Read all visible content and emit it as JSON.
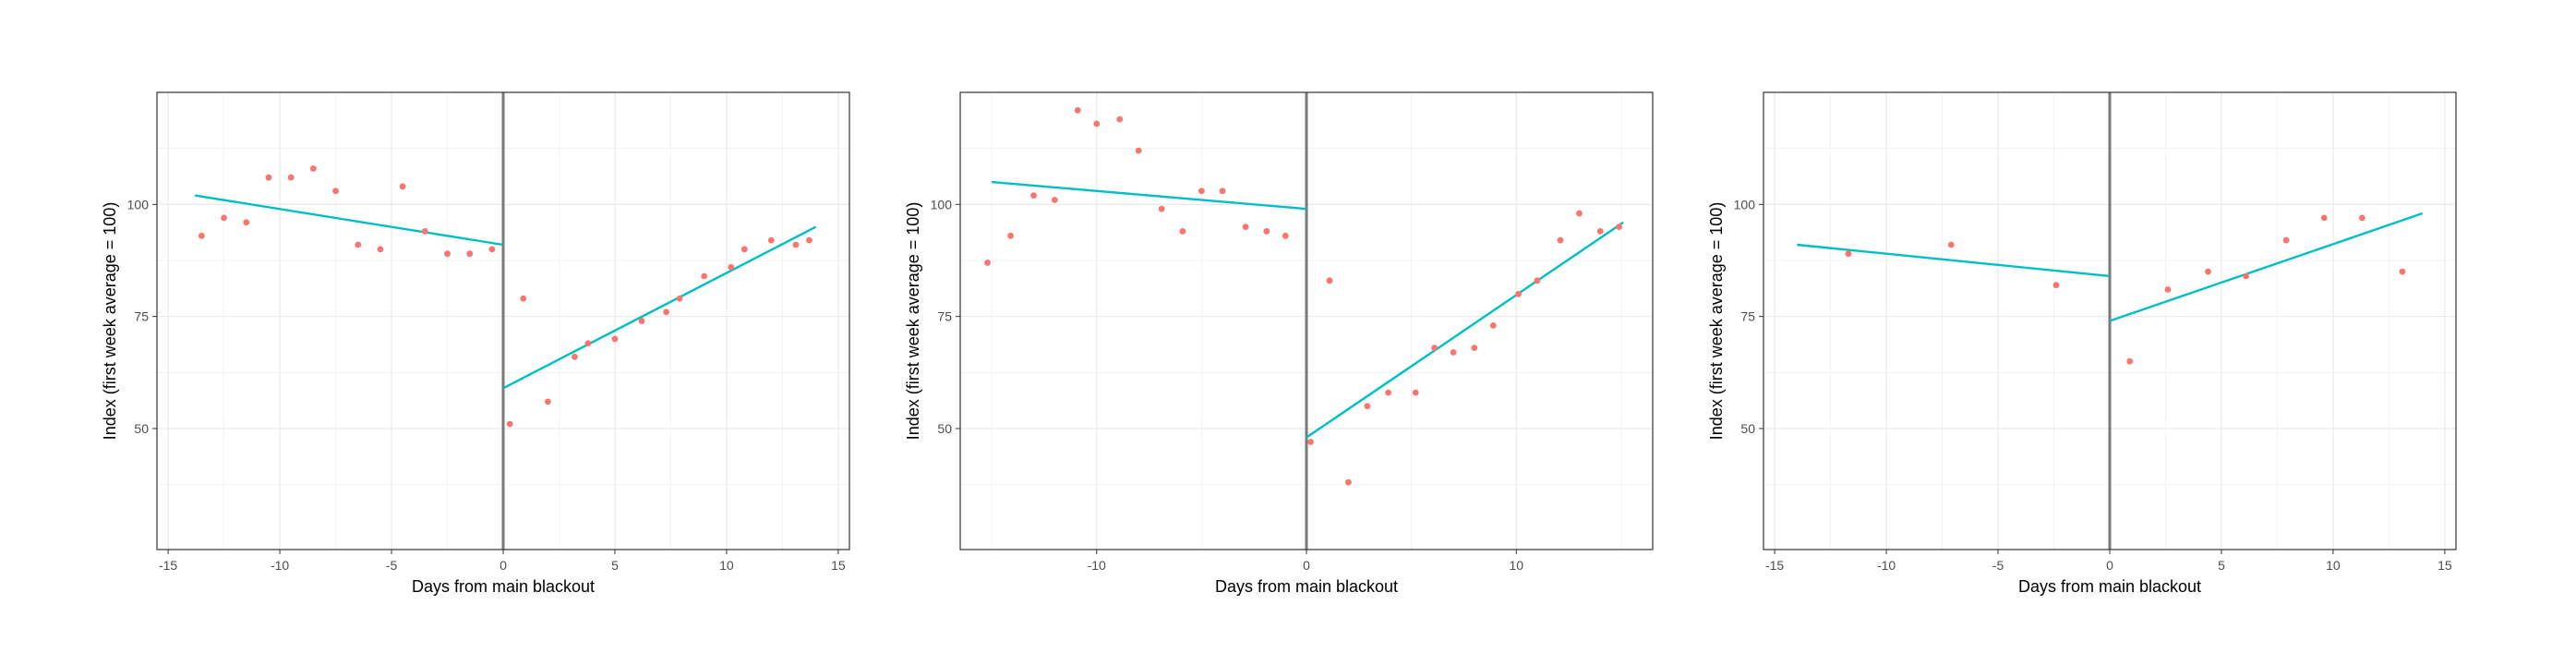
{
  "colors": {
    "point": "#f8766d",
    "fit_line": "#00bfc4",
    "cutoff_line": "#7a7a7a",
    "grid": "#ebebeb",
    "panel_border": "#333333",
    "background": "#ffffff"
  },
  "chart_data": [
    {
      "type": "scatter",
      "xlabel": "Days from main blackout",
      "ylabel": "Index (first week average = 100)",
      "xlim": [
        -15.5,
        15.5
      ],
      "ylim": [
        23,
        125
      ],
      "xticks": [
        -15,
        -10,
        -5,
        0,
        5,
        10,
        15
      ],
      "yticks": [
        50,
        75,
        100
      ],
      "grid": true,
      "cutoff_x": 0,
      "points": [
        {
          "x": -13.5,
          "y": 93
        },
        {
          "x": -12.5,
          "y": 97
        },
        {
          "x": -11.5,
          "y": 96
        },
        {
          "x": -10.5,
          "y": 106
        },
        {
          "x": -9.5,
          "y": 106
        },
        {
          "x": -8.5,
          "y": 108
        },
        {
          "x": -7.5,
          "y": 103
        },
        {
          "x": -6.5,
          "y": 91
        },
        {
          "x": -5.5,
          "y": 90
        },
        {
          "x": -4.5,
          "y": 104
        },
        {
          "x": -3.5,
          "y": 94
        },
        {
          "x": -2.5,
          "y": 89
        },
        {
          "x": -1.5,
          "y": 89
        },
        {
          "x": -0.5,
          "y": 90
        },
        {
          "x": 0.3,
          "y": 51
        },
        {
          "x": 0.9,
          "y": 79
        },
        {
          "x": 2.0,
          "y": 56
        },
        {
          "x": 3.2,
          "y": 66
        },
        {
          "x": 3.8,
          "y": 69
        },
        {
          "x": 5.0,
          "y": 70
        },
        {
          "x": 6.2,
          "y": 74
        },
        {
          "x": 7.3,
          "y": 76
        },
        {
          "x": 7.9,
          "y": 79
        },
        {
          "x": 9.0,
          "y": 84
        },
        {
          "x": 10.2,
          "y": 86
        },
        {
          "x": 10.8,
          "y": 90
        },
        {
          "x": 12.0,
          "y": 92
        },
        {
          "x": 13.1,
          "y": 91
        },
        {
          "x": 13.7,
          "y": 92
        }
      ],
      "fits": [
        {
          "x": [
            -13.8,
            0
          ],
          "y": [
            102,
            91
          ]
        },
        {
          "x": [
            0,
            14
          ],
          "y": [
            59,
            95
          ]
        }
      ]
    },
    {
      "type": "scatter",
      "xlabel": "Days from main blackout",
      "ylabel": "Index (first week average = 100)",
      "xlim": [
        -16.5,
        16.5
      ],
      "ylim": [
        23,
        125
      ],
      "xticks": [
        -10,
        0,
        10
      ],
      "yticks": [
        50,
        75,
        100
      ],
      "grid": true,
      "cutoff_x": 0,
      "points": [
        {
          "x": -15.2,
          "y": 87
        },
        {
          "x": -14.1,
          "y": 93
        },
        {
          "x": -13.0,
          "y": 102
        },
        {
          "x": -12.0,
          "y": 101
        },
        {
          "x": -10.9,
          "y": 121
        },
        {
          "x": -10.0,
          "y": 118
        },
        {
          "x": -8.9,
          "y": 119
        },
        {
          "x": -8.0,
          "y": 112
        },
        {
          "x": -6.9,
          "y": 99
        },
        {
          "x": -5.9,
          "y": 94
        },
        {
          "x": -5.0,
          "y": 103
        },
        {
          "x": -4.0,
          "y": 103
        },
        {
          "x": -2.9,
          "y": 95
        },
        {
          "x": -1.9,
          "y": 94
        },
        {
          "x": -1.0,
          "y": 93
        },
        {
          "x": 0.2,
          "y": 47
        },
        {
          "x": 1.1,
          "y": 83
        },
        {
          "x": 2.0,
          "y": 38
        },
        {
          "x": 2.9,
          "y": 55
        },
        {
          "x": 3.9,
          "y": 58
        },
        {
          "x": 5.2,
          "y": 58
        },
        {
          "x": 6.1,
          "y": 68
        },
        {
          "x": 7.0,
          "y": 67
        },
        {
          "x": 8.0,
          "y": 68
        },
        {
          "x": 8.9,
          "y": 73
        },
        {
          "x": 10.1,
          "y": 80
        },
        {
          "x": 11.0,
          "y": 83
        },
        {
          "x": 12.1,
          "y": 92
        },
        {
          "x": 13.0,
          "y": 98
        },
        {
          "x": 14.0,
          "y": 94
        },
        {
          "x": 14.9,
          "y": 95
        }
      ],
      "fits": [
        {
          "x": [
            -15.0,
            0
          ],
          "y": [
            105,
            99
          ]
        },
        {
          "x": [
            0,
            15.1
          ],
          "y": [
            48,
            96
          ]
        }
      ]
    },
    {
      "type": "scatter",
      "xlabel": "Days from main blackout",
      "ylabel": "Index (first week average = 100)",
      "xlim": [
        -15.5,
        15.5
      ],
      "ylim": [
        23,
        125
      ],
      "xticks": [
        -15,
        -10,
        -5,
        0,
        5,
        10,
        15
      ],
      "yticks": [
        50,
        75,
        100
      ],
      "grid": true,
      "cutoff_x": 0,
      "points": [
        {
          "x": -11.7,
          "y": 89
        },
        {
          "x": -7.1,
          "y": 91
        },
        {
          "x": -2.4,
          "y": 82
        },
        {
          "x": 0.9,
          "y": 65
        },
        {
          "x": 2.6,
          "y": 81
        },
        {
          "x": 4.4,
          "y": 85
        },
        {
          "x": 6.1,
          "y": 84
        },
        {
          "x": 7.9,
          "y": 92
        },
        {
          "x": 9.6,
          "y": 97
        },
        {
          "x": 11.3,
          "y": 97
        },
        {
          "x": 13.1,
          "y": 85
        }
      ],
      "fits": [
        {
          "x": [
            -14.0,
            0
          ],
          "y": [
            91,
            84
          ]
        },
        {
          "x": [
            0,
            14.0
          ],
          "y": [
            74,
            98
          ]
        }
      ]
    }
  ]
}
